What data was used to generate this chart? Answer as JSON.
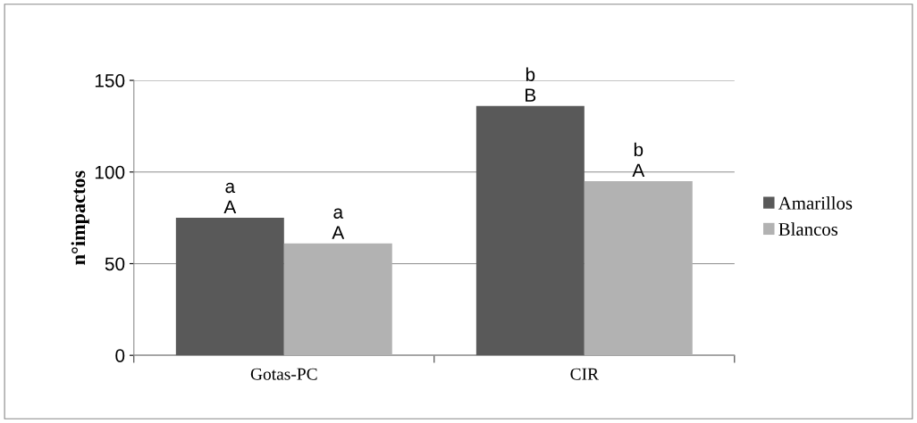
{
  "chart_data": {
    "type": "bar",
    "ylabel": "n°impactos",
    "categories": [
      "Gotas-PC",
      "CIR"
    ],
    "series": [
      {
        "name": "Amarillos",
        "color": "#595959",
        "values": [
          75,
          136
        ]
      },
      {
        "name": "Blancos",
        "color": "#b2b2b2",
        "values": [
          61,
          95
        ]
      }
    ],
    "ylim": [
      0,
      150
    ],
    "yticks": [
      0,
      50,
      100,
      150
    ],
    "grid": "y",
    "legend": "right",
    "annotations": [
      "a",
      "A",
      "a",
      "A",
      "b",
      "B",
      "b",
      "A"
    ]
  }
}
